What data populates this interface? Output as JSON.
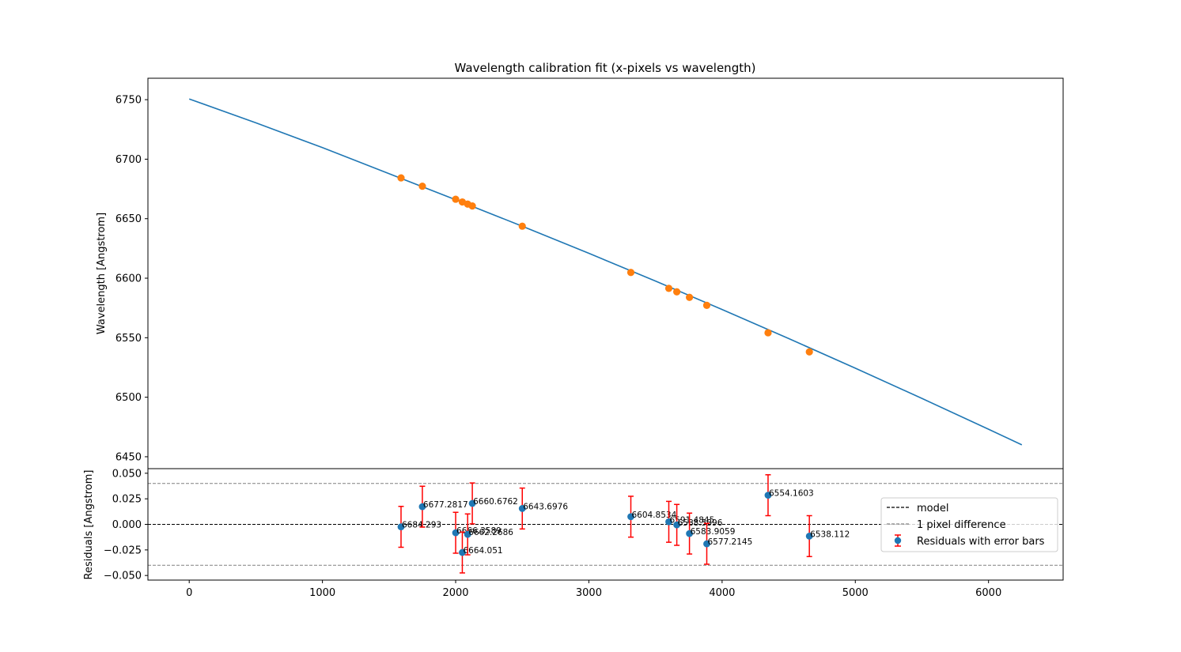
{
  "chart_data": [
    {
      "type": "line",
      "title": "Wavelength calibration fit (x-pixels vs wavelength)",
      "xlabel": "",
      "ylabel": "Wavelength [Angstrom]",
      "xlim": [
        -310,
        6560
      ],
      "ylim": [
        6440,
        6768
      ],
      "yticks": [
        6450,
        6500,
        6550,
        6600,
        6650,
        6700,
        6750
      ],
      "grid": false,
      "series": [
        {
          "kind": "line",
          "color": "#1f77b4",
          "x": [
            0,
            500,
            1000,
            1500,
            2000,
            2500,
            3000,
            3500,
            4000,
            4500,
            5000,
            5500,
            6000,
            6250
          ],
          "y": [
            6750.6,
            6730.6,
            6709.7,
            6687.8,
            6665.9,
            6643.7,
            6620.9,
            6597.6,
            6573.7,
            6549.3,
            6524.4,
            6499.0,
            6473.1,
            6460.0
          ]
        },
        {
          "kind": "scatter",
          "color": "#ff7f0e",
          "x": [
            1590,
            1750,
            2000,
            2050,
            2090,
            2125,
            2500,
            3315,
            3600,
            3660,
            3755,
            3885,
            4345,
            4655
          ],
          "y": [
            6684.293,
            6677.2817,
            6666.3589,
            6664.051,
            6662.2686,
            6660.6762,
            6643.6976,
            6604.8534,
            6591.4845,
            6588.5396,
            6583.9059,
            6577.2145,
            6554.1603,
            6538.112
          ]
        }
      ]
    },
    {
      "type": "scatter",
      "title": "",
      "xlabel": "",
      "ylabel": "Residuals [Angstrom]",
      "xlim": [
        -310,
        6560
      ],
      "ylim": [
        -0.0545,
        0.0545
      ],
      "xticks": [
        0,
        1000,
        2000,
        3000,
        4000,
        5000,
        6000
      ],
      "yticks": [
        -0.05,
        -0.025,
        0.0,
        0.025,
        0.05
      ],
      "ytick_labels": [
        "−0.050",
        "−0.025",
        "0.000",
        "0.025",
        "0.050"
      ],
      "xtick_labels": [
        "0",
        "1000",
        "2000",
        "3000",
        "4000",
        "5000",
        "6000"
      ],
      "model_line": 0.0,
      "pixel_band": [
        0.04,
        -0.04
      ],
      "points": {
        "x": [
          1590,
          1750,
          2000,
          2050,
          2090,
          2125,
          2500,
          3315,
          3600,
          3660,
          3755,
          3885,
          4345,
          4655
        ],
        "y": [
          -0.0024,
          0.0173,
          -0.0082,
          -0.0275,
          -0.0098,
          0.0205,
          0.0155,
          0.0075,
          0.0025,
          -0.0005,
          -0.009,
          -0.019,
          0.0285,
          -0.0115
        ],
        "err": [
          0.02,
          0.02,
          0.02,
          0.02,
          0.02,
          0.02,
          0.02,
          0.02,
          0.02,
          0.02,
          0.02,
          0.02,
          0.02,
          0.02
        ],
        "labels": [
          "6684.293",
          "6677.2817",
          "6666.3589",
          "6664.051",
          "6662.2686",
          "6660.6762",
          "6643.6976",
          "6604.8534",
          "6591.4845",
          "6588.5396",
          "6583.9059",
          "6577.2145",
          "6554.1603",
          "6538.112"
        ]
      },
      "legend": {
        "placement": "center-right",
        "entries": [
          "model",
          "1 pixel difference",
          "Residuals with error bars"
        ]
      },
      "colors": {
        "points": "#1f77b4",
        "errorbars": "#ff0000",
        "model": "#000000",
        "band": "#808080"
      }
    }
  ]
}
